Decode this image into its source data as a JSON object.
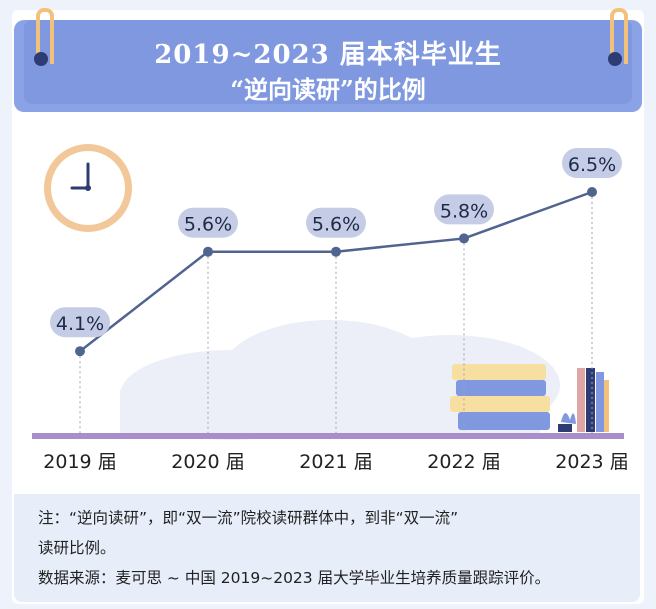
{
  "title": {
    "line1": "2019~2023 届本科毕业生",
    "line2": "“逆向读研”的比例"
  },
  "chart_data": {
    "type": "line",
    "title": "2019~2023 届本科毕业生“逆向读研”的比例",
    "categories": [
      "2019 届",
      "2020 届",
      "2021 届",
      "2022 届",
      "2023 届"
    ],
    "values": [
      4.1,
      5.6,
      5.6,
      5.8,
      6.5
    ],
    "value_labels": [
      "4.1%",
      "5.6%",
      "5.6%",
      "5.8%",
      "6.5%"
    ],
    "unit": "%",
    "xlabel": "",
    "ylabel": "",
    "ylim": [
      3.5,
      6.5
    ]
  },
  "notes": {
    "line1": "注：“逆向读研”，即“双一流”院校读研群体中，到非“双一流”",
    "line2": "读研比例。",
    "line3": "数据来源：麦可思 ~ 中国 2019~2023 届大学毕业生培养质量跟踪评价。"
  },
  "colors": {
    "line": "#51648f",
    "marker": "#51648f",
    "label_bg": "#c5cde6",
    "baseline": "#a98fc9",
    "title_bg": "#7f98e0"
  }
}
